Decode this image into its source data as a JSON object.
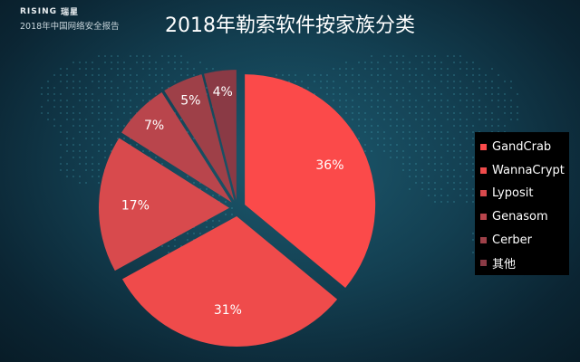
{
  "brand": {
    "logo_text": "RISING",
    "logo_cn": "瑞星",
    "subtitle": "2018年中国网络安全报告"
  },
  "title": "2018年勒索软件按家族分类",
  "colors": {
    "background": "#133f51",
    "legend_bg": "#000000",
    "slices": [
      "#fb4a4a",
      "#ef4b4b",
      "#d84a4d",
      "#b9454c",
      "#9e4048",
      "#8a3a45"
    ]
  },
  "chart_data": {
    "type": "pie",
    "title": "2018年勒索软件按家族分类",
    "labels": [
      "GandCrab",
      "WannaCrypt",
      "Lyposit",
      "Genasom",
      "Cerber",
      "其他"
    ],
    "values": [
      36,
      31,
      17,
      7,
      5,
      4
    ],
    "value_labels": [
      "36%",
      "31%",
      "17%",
      "7%",
      "5%",
      "4%"
    ],
    "exploded": true,
    "legend_position": "right"
  }
}
